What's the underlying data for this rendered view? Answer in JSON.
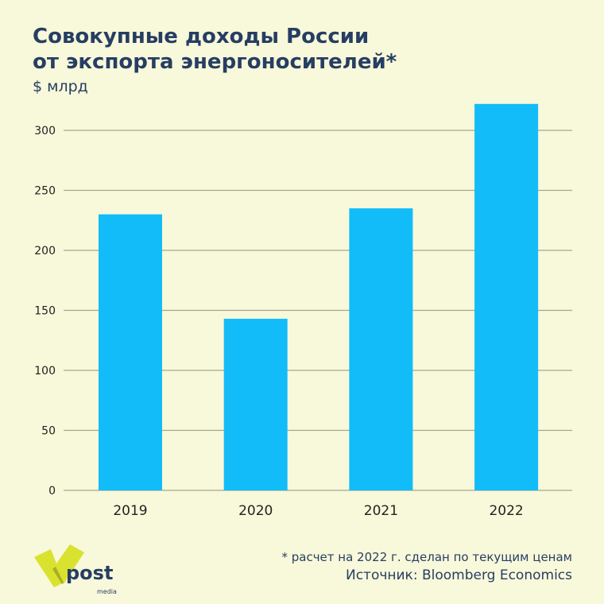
{
  "title_line1": "Совокупные доходы России",
  "title_line2": "от экспорта энергоносителей*",
  "unit": "$ млрд",
  "footnote": "* расчет на 2022 г. сделан по текущим ценам",
  "source": "Источник: Bloomberg Economics",
  "logo": {
    "text": "post",
    "subtext": "media"
  },
  "colors": {
    "bar": "#12bcf8",
    "background": "#f8f8da",
    "title": "#263e63",
    "logo": "#d9e22e"
  },
  "chart_data": {
    "type": "bar",
    "title": "Совокупные доходы России от экспорта энергоносителей*",
    "ylabel": "$ млрд",
    "xlabel": "",
    "categories": [
      "2019",
      "2020",
      "2021",
      "2022"
    ],
    "values": [
      230,
      143,
      235,
      322
    ],
    "ylim": [
      0,
      330
    ],
    "yticks": [
      0,
      50,
      100,
      150,
      200,
      250,
      300
    ],
    "grid": true
  }
}
